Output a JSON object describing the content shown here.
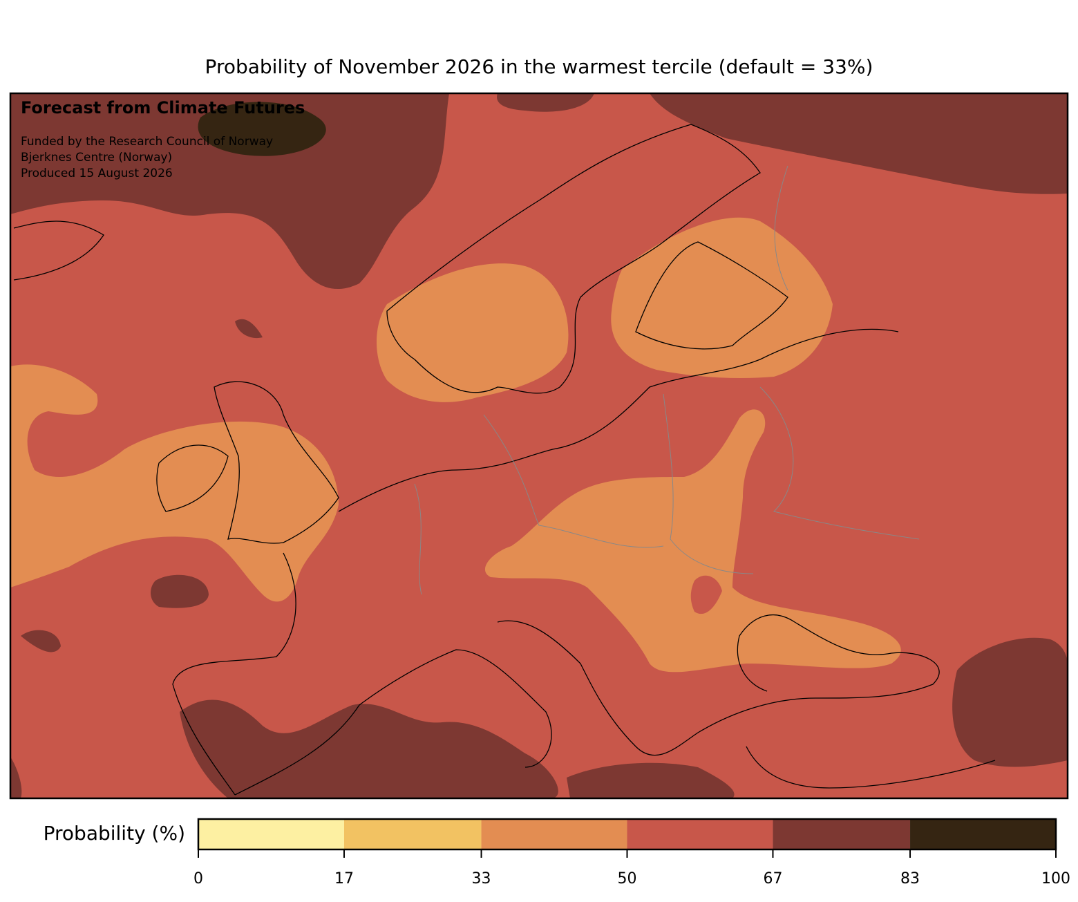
{
  "title": "Probability of November 2026 in the warmest tercile (default = 33%)",
  "annotation": {
    "heading": "Forecast from Climate Futures",
    "lines": [
      "Funded by the Research Council of Norway",
      "Bjerknes Centre (Norway)",
      "Produced 15 August 2026"
    ]
  },
  "colorbar": {
    "label": "Probability (%)",
    "ticks": [
      0,
      17,
      33,
      50,
      67,
      83,
      100
    ],
    "colors": [
      "#fdf0a2",
      "#f2c262",
      "#e38d52",
      "#c8574a",
      "#7d3832",
      "#352512"
    ]
  }
}
